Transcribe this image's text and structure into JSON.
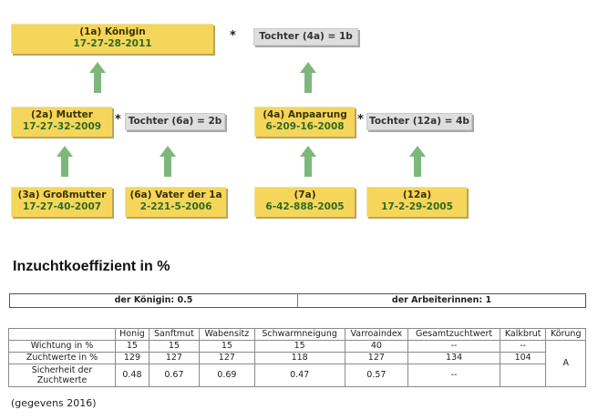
{
  "pedigree": {
    "queen": {
      "title": "(1a) Königin",
      "code": "17-27-28-2011"
    },
    "daughter_top": "Tochter (4a) = 1b",
    "mother": {
      "title": "(2a) Mutter",
      "code": "17-27-32-2009"
    },
    "daughter_mid_left": "Tochter (6a) = 2b",
    "mating": {
      "title": "(4a) Anpaarung",
      "code": "6-209-16-2008"
    },
    "daughter_mid_right": "Tochter (12a) = 4b",
    "grandmother": {
      "title": "(3a) Großmutter",
      "code": "17-27-40-2007"
    },
    "father": {
      "title": "(6a) Vater der 1a",
      "code": "2-221-5-2006"
    },
    "b7": {
      "title": "(7a)",
      "code": "6-42-888-2005"
    },
    "b12": {
      "title": "(12a)",
      "code": "17-2-29-2005"
    },
    "star": "*"
  },
  "section_title": "Inzuchtkoeffizient in %",
  "inbreeding": {
    "queen": "der Königin: 0.5",
    "workers": "der Arbeiterinnen: 1"
  },
  "table": {
    "headers": [
      "",
      "Honig",
      "Sanftmut",
      "Wabensitz",
      "Schwarmneigung",
      "Varroaindex",
      "Gesamtzuchtwert",
      "Kalkbrut",
      "Körung"
    ],
    "rows": [
      [
        "Wichtung in %",
        "15",
        "15",
        "15",
        "15",
        "40",
        "--",
        "--"
      ],
      [
        "Zuchtwerte in %",
        "129",
        "127",
        "127",
        "118",
        "127",
        "134",
        "104"
      ],
      [
        "Sicherheit der Zuchtwerte",
        "0.48",
        "0.67",
        "0.69",
        "0.47",
        "0.57",
        "--",
        ""
      ]
    ],
    "koerung": "A"
  },
  "footnote": "(gegevens 2016)",
  "colors": {
    "box_yellow": "#f5d65a",
    "box_grey": "#dedede",
    "arrow_green": "#7db87a",
    "code_green": "#2f6b22"
  }
}
